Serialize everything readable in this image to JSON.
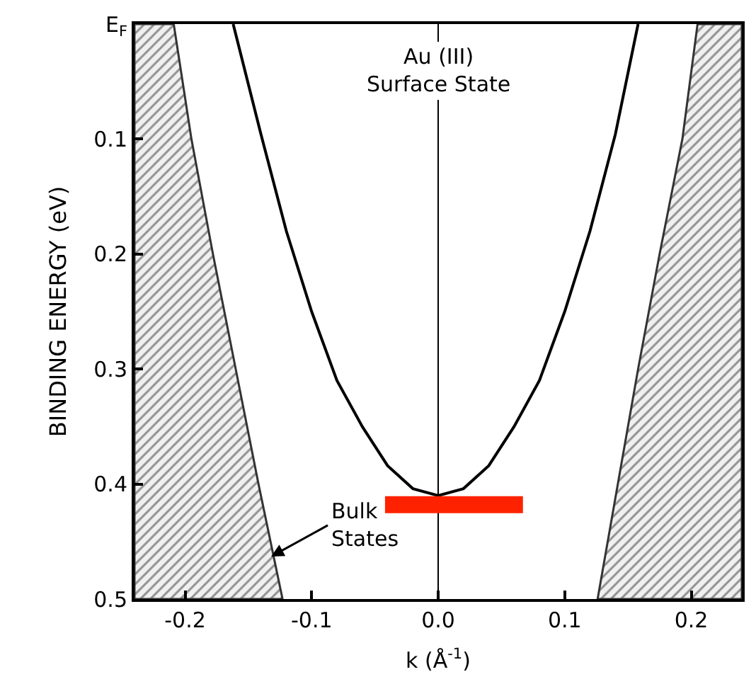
{
  "chart_data": {
    "type": "line",
    "xlabel": "k (Å$^{-1}$)",
    "ylabel": "BINDING ENERGY (eV)",
    "xlim": [
      -0.24,
      0.24
    ],
    "ylim": [
      0.5,
      0
    ],
    "xticks": [
      {
        "value": -0.2,
        "label": "-0.2"
      },
      {
        "value": -0.1,
        "label": "-0.1"
      },
      {
        "value": 0,
        "label": "0.0"
      },
      {
        "value": 0.1,
        "label": "0.1"
      },
      {
        "value": 0.2,
        "label": "0.2"
      }
    ],
    "yticks": [
      {
        "value": 0,
        "label": "E$_{F}$"
      },
      0.1,
      0.2,
      0.3,
      0.4,
      0.5
    ],
    "grid": false,
    "series": [
      {
        "type": "area",
        "color": "#333333",
        "x": [
          -0.209,
          -0.195,
          -0.178,
          -0.16,
          -0.142,
          -0.123,
          -0.24,
          -0.24
        ],
        "values": [
          0,
          0.1,
          0.2,
          0.3,
          0.4,
          0.5,
          0.5,
          0
        ]
      },
      {
        "type": "area",
        "color": "#333333",
        "x": [
          0.205,
          0.193,
          0.175,
          0.158,
          0.142,
          0.126,
          0.24,
          0.24
        ],
        "values": [
          0,
          0.1,
          0.2,
          0.3,
          0.4,
          0.5,
          0.5,
          0
        ]
      },
      {
        "color": "#000000",
        "x": [
          -0.162,
          -0.14,
          -0.12,
          -0.1,
          -0.08,
          -0.06,
          -0.04,
          -0.02,
          0,
          0.02,
          0.04,
          0.06,
          0.08,
          0.1,
          0.12,
          0.14,
          0.158
        ],
        "values": [
          0,
          0.096,
          0.18,
          0.25,
          0.31,
          0.35,
          0.384,
          0.404,
          0.41,
          0.404,
          0.384,
          0.35,
          0.31,
          0.25,
          0.18,
          0.096,
          0
        ]
      },
      {
        "color": "#ff2200",
        "x": [
          -0.042,
          0.067
        ],
        "values": [
          0.418,
          0.418
        ]
      }
    ],
    "ref_lines": [
      {
        "axis": "x",
        "value": 0,
        "color": "#000000"
      }
    ],
    "annotations": [
      "Au (III)\nSurface State",
      {
        "text": "Bulk\nStates",
        "x": -0.132,
        "y": 0.463
      }
    ]
  }
}
